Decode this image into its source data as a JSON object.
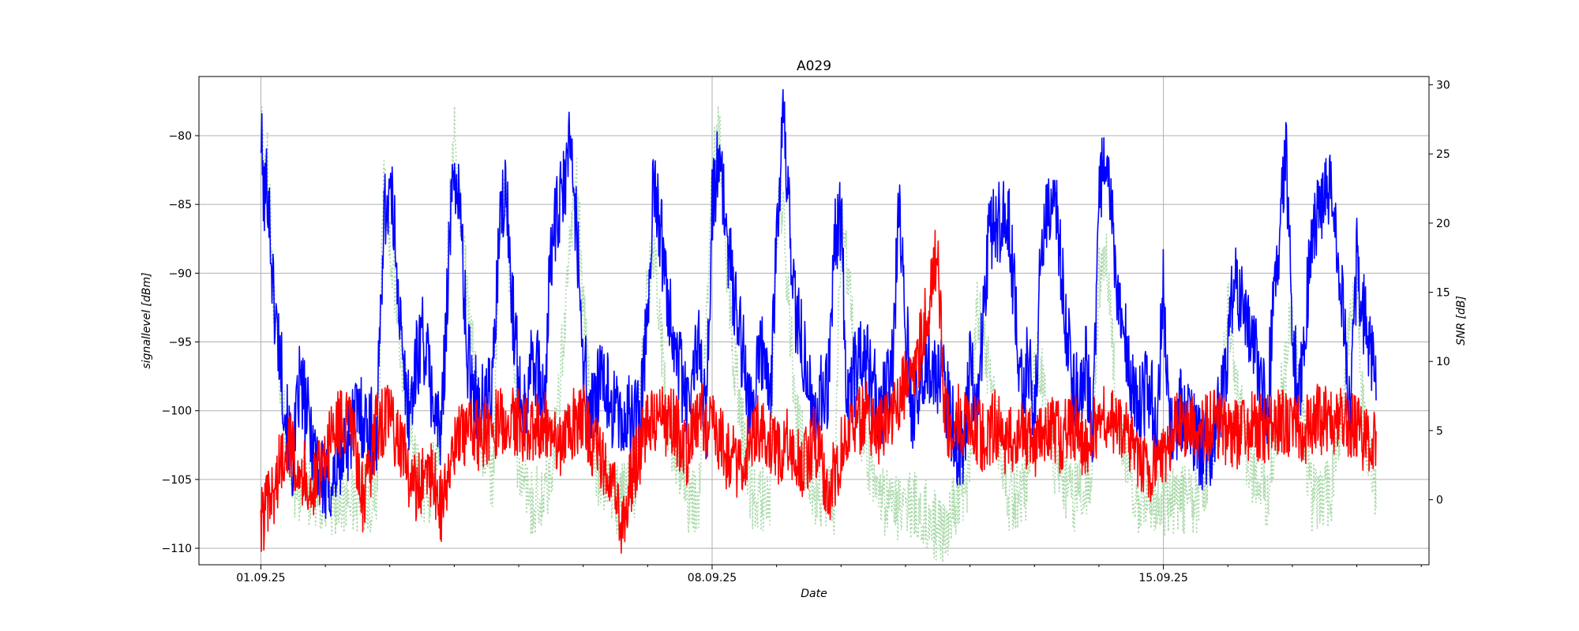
{
  "chart_data": {
    "type": "line",
    "title": "A029",
    "xlabel": "Date",
    "ylabel_left": "signallevel [dBm]",
    "ylabel_right": "SNR [dB]",
    "x_ticks": [
      "01.09.25",
      "08.09.25",
      "15.09.25"
    ],
    "x_range_days": [
      31.04,
      50.12
    ],
    "x_tick_days": [
      32,
      39,
      46
    ],
    "ylim_left": [
      -111.2,
      -75.7
    ],
    "ylim_right": [
      -4.7,
      30.6
    ],
    "yticks_left": [
      -80,
      -85,
      -90,
      -95,
      -100,
      -105,
      -110
    ],
    "yticks_right": [
      30,
      25,
      20,
      15,
      10,
      5,
      0
    ],
    "grid": true,
    "series": [
      {
        "axis": "left",
        "color": "#0000ff",
        "style": "solid",
        "x_days": [
          32.0,
          32.05,
          32.1,
          32.2,
          32.3,
          32.4,
          32.5,
          32.6,
          32.8,
          33.0,
          33.2,
          33.5,
          33.8,
          33.9,
          34.0,
          34.1,
          34.2,
          34.3,
          34.5,
          34.7,
          34.8,
          34.9,
          35.0,
          35.1,
          35.2,
          35.4,
          35.6,
          35.7,
          35.8,
          35.9,
          36.0,
          36.1,
          36.2,
          36.4,
          36.5,
          36.7,
          36.8,
          36.9,
          37.0,
          37.1,
          37.3,
          37.6,
          37.9,
          38.0,
          38.1,
          38.3,
          38.6,
          38.8,
          38.9,
          39.0,
          39.1,
          39.3,
          39.6,
          39.8,
          39.9,
          40.0,
          40.1,
          40.3,
          40.6,
          40.8,
          40.9,
          41.0,
          41.1,
          41.3,
          41.6,
          41.8,
          41.9,
          42.0,
          42.1,
          42.3,
          42.6,
          42.8,
          42.9,
          43.0,
          43.1,
          43.3,
          43.6,
          43.8,
          43.9,
          44.0,
          44.1,
          44.3,
          44.6,
          44.8,
          44.9,
          45.0,
          45.1,
          45.3,
          45.6,
          45.8,
          45.9,
          46.0,
          46.1,
          46.3,
          46.6,
          46.8,
          47.0,
          47.1,
          47.3,
          47.6,
          47.8,
          47.9,
          48.0,
          48.1,
          48.3,
          48.6,
          48.8,
          48.9,
          49.0,
          49.1,
          49.3
        ],
        "values": [
          -79.8,
          -85.0,
          -83.0,
          -92.0,
          -96.0,
          -101.0,
          -104.0,
          -98.0,
          -102.0,
          -106.0,
          -104.0,
          -100.0,
          -102.0,
          -86.0,
          -84.0,
          -88.0,
          -97.0,
          -100.0,
          -94.0,
          -100.0,
          -102.0,
          -90.0,
          -82.0,
          -86.0,
          -96.0,
          -100.0,
          -98.0,
          -87.0,
          -84.0,
          -92.0,
          -98.0,
          -100.0,
          -95.0,
          -100.0,
          -88.0,
          -84.0,
          -80.0,
          -87.0,
          -96.0,
          -100.0,
          -98.0,
          -101.0,
          -100.0,
          -92.0,
          -83.0,
          -91.0,
          -100.0,
          -95.0,
          -101.0,
          -85.0,
          -82.0,
          -90.0,
          -100.0,
          -95.0,
          -100.0,
          -87.0,
          -79.0,
          -93.0,
          -100.0,
          -98.0,
          -87.0,
          -86.0,
          -100.0,
          -95.0,
          -100.0,
          -97.0,
          -85.0,
          -93.0,
          -100.0,
          -96.0,
          -98.0,
          -103.0,
          -102.0,
          -97.0,
          -100.0,
          -87.0,
          -86.0,
          -99.0,
          -96.0,
          -101.0,
          -88.0,
          -84.0,
          -99.0,
          -97.0,
          -101.0,
          -85.0,
          -81.0,
          -92.0,
          -100.0,
          -98.0,
          -101.0,
          -91.0,
          -101.0,
          -100.0,
          -103.0,
          -102.0,
          -96.0,
          -90.0,
          -93.0,
          -100.0,
          -87.0,
          -81.0,
          -94.0,
          -100.0,
          -87.0,
          -83.0,
          -93.0,
          -100.0,
          -89.0,
          -93.0,
          -97.0
        ],
        "noise_amplitude": 3.2
      },
      {
        "axis": "left",
        "color": "#ff0000",
        "style": "solid",
        "x_days": [
          32.0,
          32.2,
          32.4,
          32.6,
          32.8,
          33.0,
          33.2,
          33.4,
          33.6,
          33.8,
          34.0,
          34.2,
          34.4,
          34.6,
          34.8,
          35.0,
          35.2,
          35.4,
          35.6,
          35.8,
          36.0,
          36.2,
          36.4,
          36.6,
          36.8,
          37.0,
          37.2,
          37.4,
          37.6,
          37.8,
          38.0,
          38.2,
          38.4,
          38.6,
          38.8,
          39.0,
          39.2,
          39.4,
          39.6,
          39.8,
          40.0,
          40.2,
          40.4,
          40.6,
          40.8,
          41.0,
          41.2,
          41.4,
          41.6,
          41.8,
          42.0,
          42.2,
          42.4,
          42.5,
          42.6,
          42.7,
          42.8,
          43.0,
          43.2,
          43.4,
          43.6,
          43.8,
          44.0,
          44.2,
          44.4,
          44.6,
          44.8,
          45.0,
          45.2,
          45.4,
          45.6,
          45.8,
          46.0,
          46.2,
          46.4,
          46.6,
          46.8,
          47.0,
          47.2,
          47.4,
          47.6,
          47.8,
          48.0,
          48.2,
          48.4,
          48.6,
          48.8,
          49.0,
          49.2,
          49.3
        ],
        "values": [
          -108.0,
          -106.0,
          -102.0,
          -104.0,
          -106.0,
          -103.0,
          -101.0,
          -101.0,
          -107.0,
          -101.0,
          -100.5,
          -103.0,
          -106.0,
          -104.0,
          -107.0,
          -103.0,
          -101.0,
          -102.0,
          -101.0,
          -100.5,
          -101.0,
          -101.5,
          -100.5,
          -103.0,
          -101.0,
          -100.5,
          -103.0,
          -104.0,
          -108.0,
          -104.0,
          -101.0,
          -100.8,
          -101.0,
          -103.0,
          -100.5,
          -101.0,
          -103.0,
          -104.0,
          -102.0,
          -101.0,
          -103.0,
          -102.0,
          -104.0,
          -102.0,
          -106.0,
          -103.0,
          -101.0,
          -100.5,
          -101.5,
          -100.8,
          -98.0,
          -96.0,
          -91.0,
          -88.0,
          -100.0,
          -101.5,
          -100.5,
          -101.0,
          -102.0,
          -101.0,
          -102.5,
          -101.0,
          -103.0,
          -101.0,
          -102.0,
          -101.0,
          -103.0,
          -100.5,
          -101.0,
          -101.5,
          -103.0,
          -104.0,
          -103.0,
          -101.0,
          -101.0,
          -101.5,
          -101.0,
          -101.5,
          -102.0,
          -101.0,
          -101.5,
          -101.0,
          -101.0,
          -101.5,
          -100.5,
          -101.0,
          -100.5,
          -101.5,
          -102.0,
          -103.0
        ],
        "noise_amplitude": 2.6
      },
      {
        "axis": "right",
        "color": "#a8d8a8",
        "style": "dotted",
        "x_days": [
          32.0,
          32.05,
          32.1,
          32.2,
          32.3,
          32.5,
          32.7,
          33.0,
          33.3,
          33.6,
          33.8,
          33.9,
          34.0,
          34.2,
          34.4,
          34.6,
          34.8,
          34.9,
          35.0,
          35.2,
          35.4,
          35.6,
          35.7,
          35.8,
          35.9,
          36.0,
          36.2,
          36.5,
          36.8,
          36.9,
          37.0,
          37.2,
          37.5,
          37.8,
          38.0,
          38.1,
          38.3,
          38.6,
          38.8,
          39.0,
          39.1,
          39.3,
          39.6,
          39.9,
          40.0,
          40.1,
          40.3,
          40.6,
          40.9,
          41.0,
          41.1,
          41.3,
          41.6,
          41.8,
          42.0,
          42.2,
          42.4,
          42.6,
          42.8,
          43.0,
          43.1,
          43.3,
          43.6,
          43.9,
          44.0,
          44.1,
          44.3,
          44.6,
          44.9,
          45.0,
          45.1,
          45.3,
          45.6,
          45.9,
          46.0,
          46.3,
          46.6,
          46.9,
          47.0,
          47.1,
          47.3,
          47.6,
          47.9,
          48.0,
          48.1,
          48.3,
          48.6,
          48.9,
          49.0,
          49.1,
          49.3
        ],
        "values": [
          28.5,
          22.0,
          25.0,
          14.0,
          8.0,
          1.0,
          0.5,
          -0.2,
          0.0,
          0.2,
          0.0,
          22.5,
          19.0,
          10.0,
          2.0,
          0.0,
          5.0,
          18.0,
          27.0,
          15.0,
          5.0,
          1.0,
          20.0,
          22.0,
          12.0,
          1.0,
          -0.2,
          1.0,
          18.0,
          24.0,
          14.0,
          2.0,
          0.0,
          0.5,
          16.0,
          18.0,
          6.0,
          0.0,
          0.0,
          23.0,
          27.0,
          12.0,
          0.0,
          0.0,
          20.0,
          21.0,
          6.0,
          0.0,
          0.0,
          20.0,
          17.0,
          5.0,
          0.0,
          -0.5,
          -0.3,
          -0.5,
          -1.5,
          -2.8,
          0.0,
          2.0,
          14.0,
          9.0,
          0.0,
          1.0,
          11.0,
          10.0,
          3.0,
          0.0,
          2.0,
          16.0,
          18.0,
          5.0,
          0.0,
          0.0,
          -0.2,
          0.0,
          0.0,
          8.0,
          14.0,
          10.0,
          3.0,
          0.0,
          10.0,
          14.0,
          8.0,
          0.0,
          0.5,
          12.0,
          17.0,
          6.0,
          -0.3
        ],
        "noise_amplitude": 2.5
      }
    ]
  }
}
